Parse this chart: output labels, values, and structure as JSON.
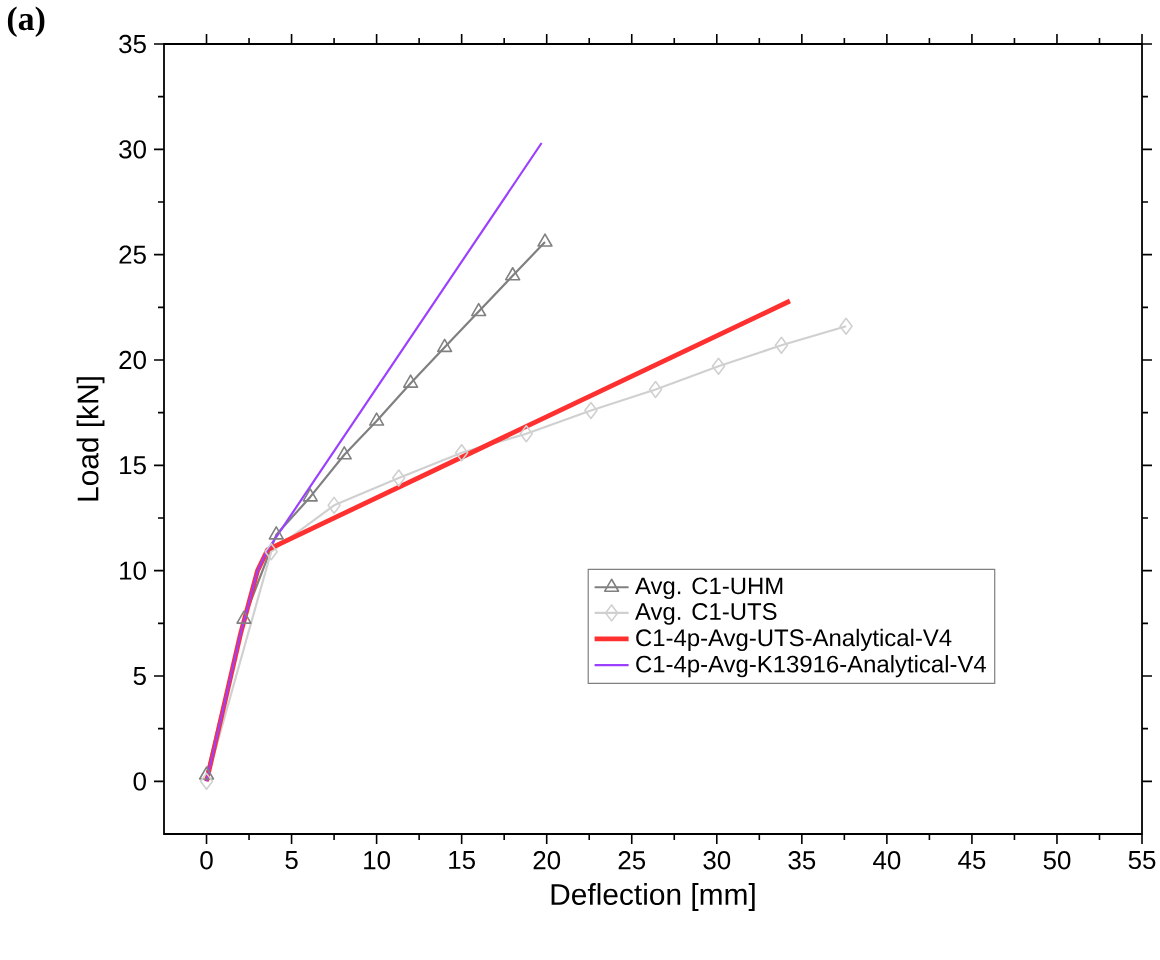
{
  "chart_data": {
    "type": "line",
    "title": "(a)",
    "xlabel": "Deflection [mm]",
    "ylabel": "Load [kN]",
    "xlim": [
      -2.5,
      55
    ],
    "ylim": [
      -2.5,
      35
    ],
    "xticks": [
      0,
      5,
      10,
      15,
      20,
      25,
      30,
      35,
      40,
      45,
      50,
      55
    ],
    "yticks": [
      0,
      5,
      10,
      15,
      20,
      25,
      30,
      35
    ],
    "grid": false,
    "legend": "bottom right",
    "series": [
      {
        "name": "Avg. C1-UHM",
        "color": "#808080",
        "marker": "triangle",
        "x": [
          0,
          2.2,
          4.1,
          6.1,
          8.1,
          10.0,
          12.0,
          14.0,
          16.0,
          18.0,
          19.9
        ],
        "values": [
          0.3,
          7.7,
          11.7,
          13.5,
          15.5,
          17.1,
          18.9,
          20.6,
          22.3,
          24.0,
          25.6
        ]
      },
      {
        "name": "Avg. C1-UTS",
        "color": "#d0d0d0",
        "marker": "diamond",
        "x": [
          0,
          3.8,
          7.5,
          11.3,
          15.0,
          18.8,
          22.6,
          26.4,
          30.1,
          33.8,
          37.6
        ],
        "values": [
          0,
          10.9,
          13.1,
          14.4,
          15.6,
          16.5,
          17.6,
          18.6,
          19.7,
          20.7,
          21.6
        ]
      },
      {
        "name": "C1-4p-Avg-UTS-Analytical-V4",
        "color": "#ff3030",
        "marker": "none",
        "x": [
          0,
          1,
          2,
          3,
          3.6,
          34.3
        ],
        "values": [
          0,
          3.5,
          7,
          10,
          11,
          22.8
        ]
      },
      {
        "name": "C1-4p-Avg-K13916-Analytical-V4",
        "color": "#9b40ff",
        "marker": "none",
        "x": [
          0,
          1,
          2,
          3,
          3.6,
          19.7
        ],
        "values": [
          0,
          3.5,
          7,
          10,
          11,
          30.3
        ]
      }
    ]
  }
}
